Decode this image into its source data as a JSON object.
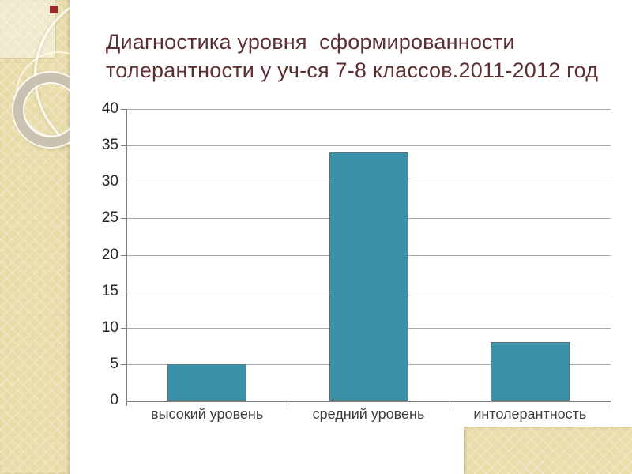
{
  "slide": {
    "title": "Диагностика уровня  сформированности толерантности у уч-ся 7-8 классов.2011-2012 год",
    "title_lines": [
      "Диагностика уровня  сформированности",
      "толерантности у уч-ся 7-8 классов.2011-2012 год"
    ],
    "title_color": "#5d2f30",
    "background_color": "#ffffff"
  },
  "template_decor": {
    "sidebar_color": "#e9ddab",
    "accent_square_color": "#9e2a2b",
    "ring_color": "#c9c1b1"
  },
  "chart_data": {
    "type": "bar",
    "categories": [
      "высокий уровень",
      "средний уровень",
      "интолерантность"
    ],
    "values": [
      5,
      34,
      8
    ],
    "title": "",
    "xlabel": "",
    "ylabel": "",
    "ylim": [
      0,
      40
    ],
    "yticks": [
      0,
      5,
      10,
      15,
      20,
      25,
      30,
      35,
      40
    ],
    "grid": true,
    "legend": false,
    "bar_color": "#3a91a8",
    "gridline_color": "#a8a8a8",
    "axis_color": "#7f7f7f",
    "tick_label_color": "#262626",
    "category_label_color": "#3d3d3d"
  }
}
